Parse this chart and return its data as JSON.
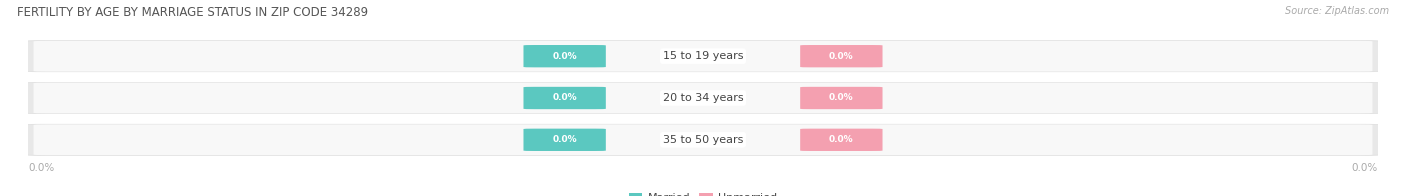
{
  "title": "FERTILITY BY AGE BY MARRIAGE STATUS IN ZIP CODE 34289",
  "source": "Source: ZipAtlas.com",
  "categories": [
    "15 to 19 years",
    "20 to 34 years",
    "35 to 50 years"
  ],
  "married_values": [
    0.0,
    0.0,
    0.0
  ],
  "unmarried_values": [
    0.0,
    0.0,
    0.0
  ],
  "married_color": "#5BC8C0",
  "unmarried_color": "#F4A0B0",
  "row_bg_color": "#EFEFEF",
  "row_inner_color": "#FAFAFA",
  "label_color": "#FFFFFF",
  "category_color": "#444444",
  "title_color": "#555555",
  "axis_label_color": "#AAAAAA",
  "figsize": [
    14.06,
    1.96
  ],
  "dpi": 100
}
